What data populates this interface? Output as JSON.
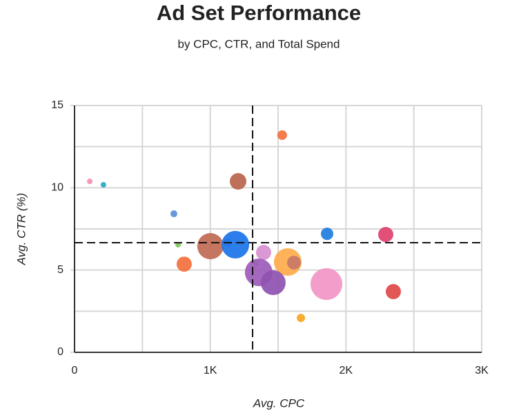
{
  "chart_data": {
    "type": "bubble",
    "title": "Ad Set Performance",
    "subtitle": "by CPC, CTR, and Total Spend",
    "x_label": "Avg. CPC",
    "y_label": "Avg. CTR (%)",
    "x": [
      112,
      213,
      1530,
      1205,
      732,
      1861,
      2293,
      763,
      1001,
      1129,
      1185,
      808,
      1393,
      1337,
      1571,
      1617,
      1357,
      1464,
      1856,
      2349,
      1668
    ],
    "values": [
      10.39,
      10.18,
      13.2,
      10.39,
      8.42,
      7.2,
      7.16,
      6.54,
      6.45,
      6.66,
      6.54,
      5.36,
      6.07,
      5.4,
      5.49,
      5.45,
      4.86,
      4.23,
      4.15,
      3.69,
      2.09
    ],
    "sizes": [
      16,
      16,
      49,
      144,
      25,
      81,
      121,
      16,
      361,
      36,
      400,
      121,
      121,
      16,
      400,
      100,
      400,
      324,
      529,
      121,
      36
    ],
    "colors": [
      "#f48fb1",
      "#26a7c9",
      "#f4703e",
      "#b8644c",
      "#5b8fd6",
      "#1e7de0",
      "#e0406e",
      "#7dc855",
      "#c06a54",
      "#7fa8d8",
      "#1a73e8",
      "#f4703e",
      "#d88fd0",
      "#7dc855",
      "#ffab4c",
      "#c77a66",
      "#9c5bb8",
      "#8e52b0",
      "#f296c6",
      "#e04848",
      "#f5a623"
    ],
    "xlim": [
      0,
      3000
    ],
    "ylim": [
      0,
      15
    ],
    "xticks": [
      {
        "value": 0,
        "label": "0"
      },
      {
        "value": 1000,
        "label": "1K"
      },
      {
        "value": 2000,
        "label": "2K"
      },
      {
        "value": 3000,
        "label": "3K"
      }
    ],
    "yticks": [
      0,
      5,
      10,
      15
    ],
    "x_minor_grid": [
      500,
      1500,
      2500
    ],
    "y_minor_grid": [
      2.5,
      7.5,
      12.5
    ],
    "reference_lines": {
      "x": 1312,
      "y": 6.66
    },
    "grid": true
  }
}
